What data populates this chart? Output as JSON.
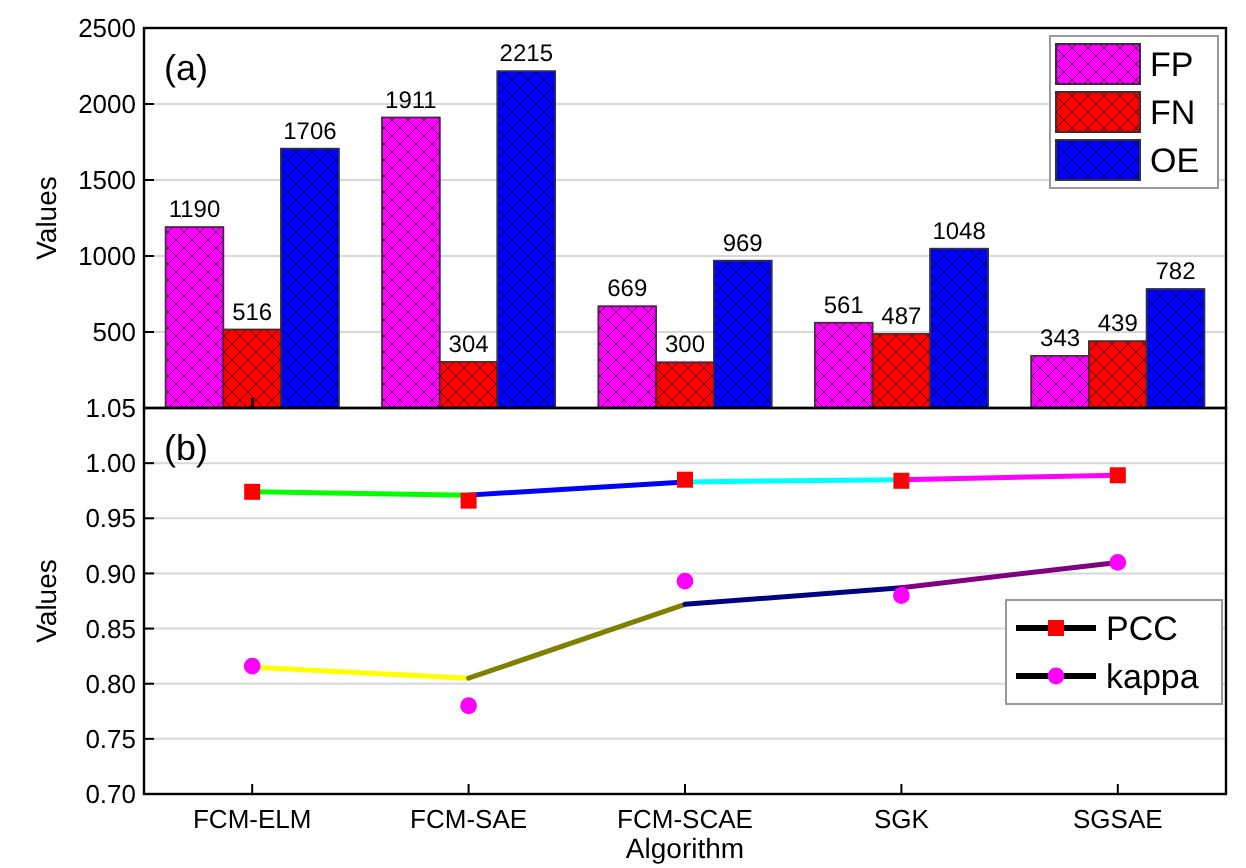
{
  "chart_data": [
    {
      "type": "bar",
      "ylabel": "Values",
      "annotations": [
        "(a)"
      ],
      "categories": [
        null,
        null,
        null,
        null,
        null
      ],
      "series": [
        {
          "name": "FP",
          "color": "#ff00ff",
          "values": [
            1190,
            1911,
            669,
            561,
            343
          ]
        },
        {
          "name": "FN",
          "color": "#ff0000",
          "values": [
            516,
            304,
            300,
            487,
            439
          ]
        },
        {
          "name": "OE",
          "color": "#0000ff",
          "values": [
            1706,
            2215,
            969,
            1048,
            782
          ]
        }
      ],
      "ylim": [
        0,
        2500
      ],
      "yticks": [
        {
          "value": 0,
          "label": null
        },
        500,
        1000,
        1500,
        2000,
        2500
      ],
      "grid": "y",
      "legend": "top right",
      "data_labels": true,
      "tick_labels": "y"
    },
    {
      "type": "line",
      "ylabel": "Values",
      "xlabel": "Algorithm",
      "annotations": [
        "(b)"
      ],
      "categories": [
        "FCM-ELM",
        "FCM-SAE",
        "FCM-SCAE",
        "SGK",
        "SGSAE"
      ],
      "series": [
        {
          "type": "line",
          "x": [
            "FCM-ELM",
            "FCM-SAE"
          ],
          "values": [
            0.974,
            0.971
          ],
          "color": "#00ff00"
        },
        {
          "type": "line",
          "x": [
            "FCM-SAE",
            "FCM-SCAE"
          ],
          "values": [
            0.971,
            0.983
          ],
          "color": "#0000ff"
        },
        {
          "type": "line",
          "x": [
            "FCM-SCAE",
            "SGK"
          ],
          "values": [
            0.983,
            0.985
          ],
          "color": "#00ffff"
        },
        {
          "type": "line",
          "x": [
            "SGK",
            "SGSAE"
          ],
          "values": [
            0.985,
            0.989
          ],
          "color": "#ff00ff"
        },
        {
          "type": "line",
          "x": [
            "FCM-ELM",
            "FCM-SAE"
          ],
          "values": [
            0.815,
            0.805
          ],
          "color": "#ffff00"
        },
        {
          "type": "line",
          "x": [
            "FCM-SAE",
            "FCM-SCAE"
          ],
          "values": [
            0.805,
            0.872
          ],
          "color": "#808000"
        },
        {
          "type": "line",
          "x": [
            "FCM-SCAE",
            "SGK"
          ],
          "values": [
            0.872,
            0.887
          ],
          "color": "#000080"
        },
        {
          "type": "line",
          "x": [
            "SGK",
            "SGSAE"
          ],
          "values": [
            0.887,
            0.91
          ],
          "color": "#800080"
        },
        {
          "type": "scatter",
          "name": "PCC",
          "marker": "square",
          "color": "#ff0000",
          "values": [
            0.974,
            0.966,
            0.985,
            0.984,
            0.989
          ]
        },
        {
          "type": "scatter",
          "name": "kappa",
          "marker": "circle",
          "color": "#ff00ff",
          "values": [
            0.816,
            0.78,
            0.893,
            0.88,
            0.91
          ]
        }
      ],
      "ylim": [
        0.7,
        1.05
      ],
      "yticks": [
        {
          "value": 0.7,
          "label": "0.70"
        },
        0.75,
        {
          "value": 0.8,
          "label": "0.80"
        },
        0.85,
        {
          "value": 0.9,
          "label": "0.90"
        },
        0.95,
        {
          "value": 1.0,
          "label": "1.00"
        },
        1.05
      ],
      "grid": "y",
      "legend": "right"
    }
  ]
}
